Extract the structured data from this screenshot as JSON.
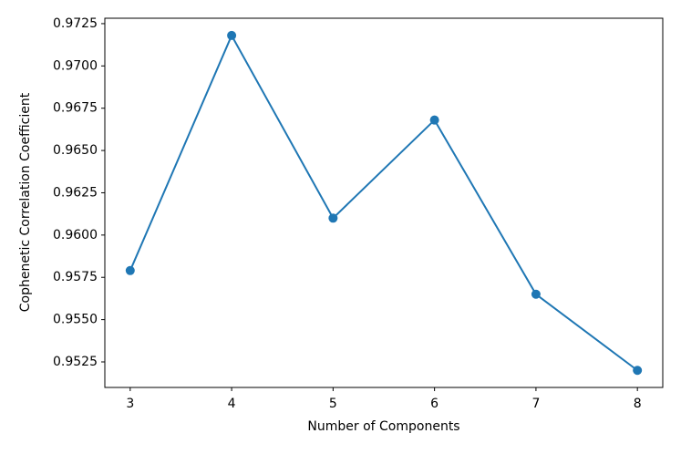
{
  "chart_data": {
    "type": "line",
    "xlabel": "Number of Components",
    "ylabel": "Cophenetic Correlation Coefficient",
    "x": [
      3,
      4,
      5,
      6,
      7,
      8
    ],
    "series": [
      {
        "color": "#1f77b4",
        "values": [
          0.9579,
          0.9718,
          0.961,
          0.9668,
          0.9565,
          0.952
        ]
      }
    ],
    "xlim": [
      2.75,
      8.25
    ],
    "ylim": [
      0.95099,
      0.97282
    ],
    "xticks": [
      3,
      4,
      5,
      6,
      7,
      8
    ],
    "yticks": [
      0.9525,
      {
        "value": 0.955,
        "label": "0.9550"
      },
      0.9575,
      {
        "value": 0.96,
        "label": "0.9600"
      },
      0.9625,
      {
        "value": 0.965,
        "label": "0.9650"
      },
      0.9675,
      {
        "value": 0.97,
        "label": "0.9700"
      },
      0.9725
    ],
    "grid": false
  }
}
